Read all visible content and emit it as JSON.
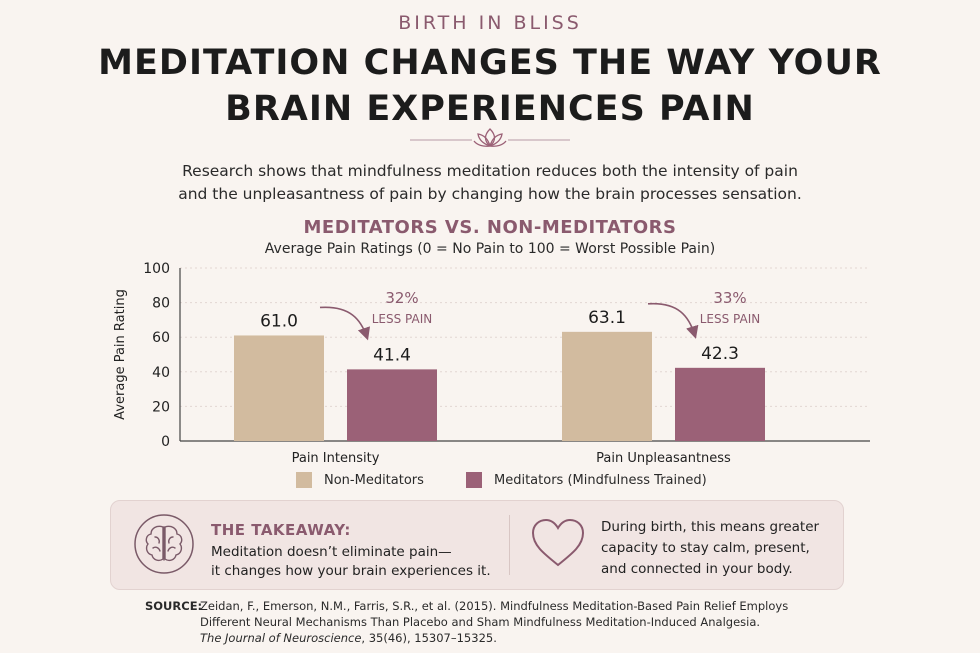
{
  "brand": "BIRTH IN BLISS",
  "headline_line1": "MEDITATION CHANGES THE WAY YOUR",
  "headline_line2": "BRAIN EXPERIENCES PAIN",
  "intro_line1": "Research shows that mindfulness meditation reduces both the intensity of pain",
  "intro_line2": "and the unpleasantness of pain by changing how the brain processes sensation.",
  "colors": {
    "non_meditators": "#d2bb9f",
    "meditators": "#9b6177",
    "accent": "#8a5a6e"
  },
  "chart_data": {
    "type": "bar",
    "title": "MEDITATORS VS. NON-MEDITATORS",
    "subtitle": "Average Pain Ratings (0 = No Pain to 100 = Worst Possible Pain)",
    "ylabel": "Average Pain Rating",
    "xlabel": "",
    "ylim": [
      0,
      100
    ],
    "yticks": [
      0,
      20,
      40,
      60,
      80,
      100
    ],
    "grid": true,
    "categories": [
      "Pain Intensity",
      "Pain Unpleasantness"
    ],
    "series": [
      {
        "name": "Non-Meditators",
        "values": [
          61.0,
          63.1
        ],
        "labels": [
          "61.0",
          "63.1"
        ]
      },
      {
        "name": "Meditators (Mindfulness Trained)",
        "values": [
          41.4,
          42.3
        ],
        "labels": [
          "41.4",
          "42.3"
        ]
      }
    ],
    "annotations": [
      {
        "percent": "32%",
        "text": "LESS PAIN"
      },
      {
        "percent": "33%",
        "text": "LESS PAIN"
      }
    ],
    "legend_position": "bottom"
  },
  "takeaway": {
    "heading": "THE TAKEAWAY:",
    "line1": "Meditation doesn’t eliminate pain—",
    "line2": "it changes how your brain experiences it.",
    "birth_line1": "During birth, this means greater",
    "birth_line2": "capacity to stay calm, present,",
    "birth_line3": "and connected in your body."
  },
  "source": {
    "label": "SOURCE:",
    "line1": "Zeidan, F., Emerson, N.M., Farris, S.R., et al. (2015). Mindfulness Meditation-Based Pain Relief Employs",
    "line2": "Different Neural Mechanisms Than Placebo and Sham Mindfulness Meditation-Induced Analgesia.",
    "journal": "The Journal of Neuroscience",
    "line3_rest": ", 35(46), 15307–15325."
  },
  "icons": {
    "ornament": "lotus-icon",
    "takeaway": "brain-icon",
    "birth": "heart-icon"
  }
}
